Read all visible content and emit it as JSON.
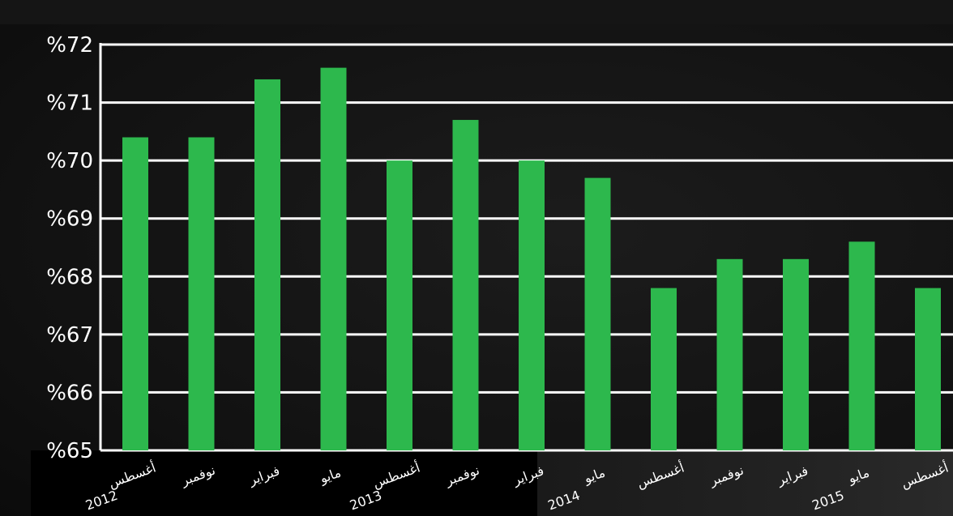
{
  "chart_data": {
    "type": "bar",
    "categories": [
      [
        "أغسطس",
        "2012"
      ],
      [
        "نوفمبر",
        ""
      ],
      [
        "فبراير",
        ""
      ],
      [
        "مايو",
        ""
      ],
      [
        "أغسطس",
        "2013"
      ],
      [
        "نوفمبر",
        ""
      ],
      [
        "فبراير",
        ""
      ],
      [
        "مايو",
        "2014"
      ],
      [
        "أغسطس",
        ""
      ],
      [
        "نوفمبر",
        ""
      ],
      [
        "فبراير",
        ""
      ],
      [
        "مايو",
        "2015"
      ],
      [
        "أغسطس",
        ""
      ]
    ],
    "values": [
      70.4,
      70.4,
      71.4,
      71.6,
      70.0,
      70.7,
      70.0,
      69.7,
      67.8,
      68.3,
      68.3,
      68.6,
      67.8
    ],
    "ylim": [
      65,
      72
    ],
    "yticks": [
      65,
      66,
      67,
      68,
      69,
      70,
      71,
      72
    ],
    "ytick_labels": [
      "%65",
      "%66",
      "%67",
      "%68",
      "%69",
      "%70",
      "%71",
      "%72"
    ],
    "grid": true,
    "colors": {
      "bar": "#2db84d",
      "grid": "#ffffff",
      "text": "#ffffff",
      "background": "#141414"
    }
  }
}
